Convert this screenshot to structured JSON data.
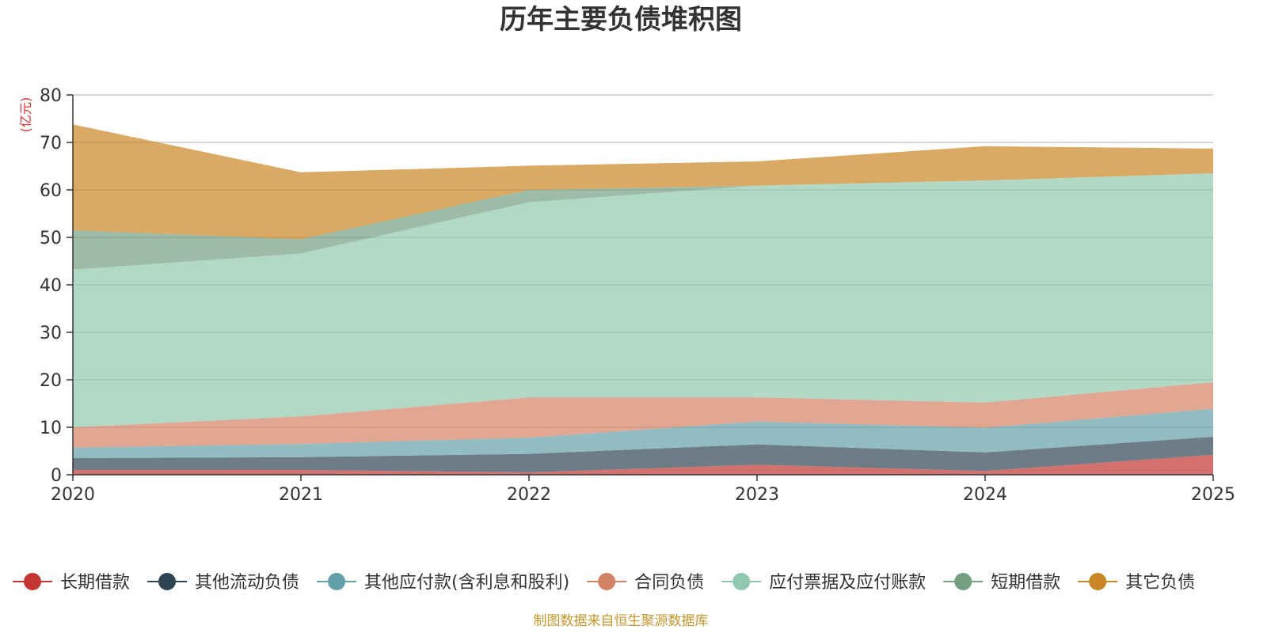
{
  "chart_data": {
    "type": "area",
    "stacked": true,
    "title": "历年主要负债堆积图",
    "unit": "(亿元)",
    "x": [
      "2020",
      "2021",
      "2022",
      "2023",
      "2024",
      "2025"
    ],
    "ylim": [
      0,
      80
    ],
    "yticks": [
      0,
      10,
      20,
      30,
      40,
      50,
      60,
      70,
      80
    ],
    "grid": true,
    "legend_position": "bottom",
    "series": [
      {
        "name": "长期借款",
        "color": "#c23531",
        "values": [
          1.0,
          1.0,
          0.5,
          2.1,
          0.8,
          4.2
        ]
      },
      {
        "name": "其他流动负债",
        "color": "#2f4554",
        "values": [
          2.5,
          2.7,
          3.9,
          4.3,
          3.9,
          3.8
        ]
      },
      {
        "name": "其他应付款(含利息和股利)",
        "color": "#61a0a8",
        "values": [
          2.2,
          2.8,
          3.4,
          4.8,
          5.2,
          5.9
        ]
      },
      {
        "name": "合同负债",
        "color": "#d48265",
        "values": [
          4.3,
          5.8,
          8.5,
          5.1,
          5.3,
          5.6
        ]
      },
      {
        "name": "应付票据及应付账款",
        "color": "#91c7ae",
        "values": [
          33.2,
          34.3,
          41.1,
          44.6,
          46.8,
          44.0
        ]
      },
      {
        "name": "短期借款",
        "color": "#749f83",
        "values": [
          8.3,
          3.0,
          2.6,
          0.0,
          0.0,
          0.0
        ]
      },
      {
        "name": "其它负债",
        "color": "#ca8622",
        "values": [
          22.3,
          14.1,
          5.1,
          5.1,
          7.2,
          5.2
        ]
      }
    ],
    "source": "制图数据来自恒生聚源数据库"
  }
}
